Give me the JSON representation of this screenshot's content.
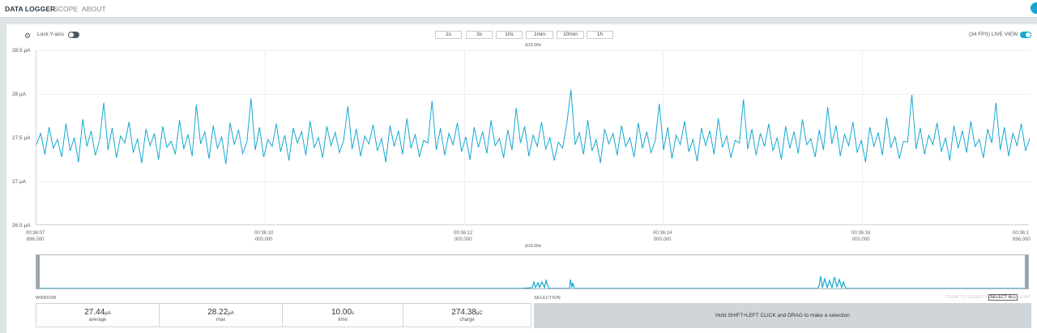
{
  "nav": {
    "items": [
      {
        "label": "DATA LOGGER",
        "active": true
      },
      {
        "label": "SCOPE",
        "active": false
      },
      {
        "label": "ABOUT",
        "active": false
      }
    ]
  },
  "toolbar": {
    "gear_icon": "gear-icon",
    "lock_label": "Lock Y-axis",
    "lock_on": false,
    "windows": [
      "1s",
      "3s",
      "10s",
      "1min",
      "10min",
      "1h"
    ],
    "fps_label": "(34 FPS) LIVE VIEW",
    "live_on": true
  },
  "chart": {
    "delta_label": "Δ10.00s",
    "y_ticks": [
      "28.5 µA",
      "28 µA",
      "27.5 µA",
      "27 µA",
      "26.5 µA"
    ],
    "x_ticks": [
      {
        "time": "00:36:07",
        "sub": "696.000"
      },
      {
        "time": "00:36:10",
        "sub": "000.000"
      },
      {
        "time": "00:36:12",
        "sub": "000.000"
      },
      {
        "time": "00:36:14",
        "sub": "000.000"
      },
      {
        "time": "00:36:16",
        "sub": "000.000"
      },
      {
        "time": "00:36:1",
        "sub": "696.000"
      }
    ],
    "line_color": "#17a8d0"
  },
  "chart_data": {
    "type": "line",
    "title": "",
    "xlabel": "",
    "ylabel": "",
    "ylim": [
      26.5,
      28.5
    ],
    "y_unit": "µA",
    "x_range_s": [
      0,
      10
    ],
    "grid": true,
    "series": [
      {
        "values": [
          27.42,
          27.55,
          27.31,
          27.62,
          27.38,
          27.48,
          27.28,
          27.66,
          27.35,
          27.5,
          27.22,
          27.71,
          27.4,
          27.58,
          27.3,
          27.47,
          27.9,
          27.36,
          27.61,
          27.27,
          27.52,
          27.44,
          27.68,
          27.33,
          27.49,
          27.21,
          27.6,
          27.41,
          27.55,
          27.25,
          27.63,
          27.39,
          27.46,
          27.31,
          27.7,
          27.37,
          27.54,
          27.29,
          27.88,
          27.43,
          27.57,
          27.26,
          27.64,
          27.38,
          27.51,
          27.2,
          27.67,
          27.42,
          27.59,
          27.32,
          27.45,
          27.95,
          27.36,
          27.62,
          27.28,
          27.48,
          27.4,
          27.66,
          27.34,
          27.53,
          27.24,
          27.61,
          27.44,
          27.57,
          27.3,
          27.69,
          27.39,
          27.5,
          27.27,
          27.63,
          27.41,
          27.56,
          27.33,
          27.47,
          27.86,
          27.37,
          27.6,
          27.29,
          27.52,
          27.43,
          27.65,
          27.35,
          27.49,
          27.22,
          27.64,
          27.4,
          27.58,
          27.31,
          27.72,
          27.38,
          27.54,
          27.28,
          27.47,
          27.44,
          27.92,
          27.36,
          27.61,
          27.3,
          27.55,
          27.42,
          27.67,
          27.34,
          27.51,
          27.25,
          27.62,
          27.39,
          27.57,
          27.32,
          27.7,
          27.41,
          27.49,
          27.27,
          27.59,
          27.36,
          27.84,
          27.44,
          27.63,
          27.29,
          27.53,
          27.4,
          27.68,
          27.37,
          27.5,
          27.24,
          27.45,
          27.38,
          27.66,
          28.05,
          27.42,
          27.56,
          27.31,
          27.7,
          27.35,
          27.48,
          27.21,
          27.6,
          27.43,
          27.55,
          27.3,
          27.64,
          27.4,
          27.5,
          27.28,
          27.67,
          27.38,
          27.57,
          27.33,
          27.46,
          27.89,
          27.36,
          27.62,
          27.26,
          27.53,
          27.42,
          27.69,
          27.34,
          27.48,
          27.23,
          27.61,
          27.41,
          27.58,
          27.31,
          27.72,
          27.39,
          27.52,
          27.27,
          27.47,
          27.44,
          27.94,
          27.37,
          27.6,
          27.3,
          27.55,
          27.4,
          27.66,
          27.35,
          27.5,
          27.25,
          27.63,
          27.38,
          27.57,
          27.32,
          27.71,
          27.42,
          27.49,
          27.28,
          27.59,
          27.36,
          27.85,
          27.43,
          27.64,
          27.29,
          27.54,
          27.41,
          27.68,
          27.33,
          27.47,
          27.22,
          27.62,
          27.4,
          27.56,
          27.3,
          27.73,
          27.39,
          27.51,
          27.26,
          27.46,
          27.45,
          27.99,
          27.37,
          27.61,
          27.31,
          27.53,
          27.42,
          27.67,
          27.34,
          27.5,
          27.24,
          27.64,
          27.38,
          27.58,
          27.33,
          27.69,
          27.4,
          27.48,
          27.27,
          27.6,
          27.44,
          27.9,
          27.36,
          27.62,
          27.29,
          27.55,
          27.41,
          27.66,
          27.35,
          27.49
        ]
      }
    ]
  },
  "minimap": {
    "delta_label": "Δ10.00s"
  },
  "window": {
    "title": "WINDOW",
    "stats": [
      {
        "value": "27.44",
        "unit": "µA",
        "label": "average"
      },
      {
        "value": "28.22",
        "unit": "µA",
        "label": "max"
      },
      {
        "value": "10.00",
        "unit": "s",
        "label": "time"
      },
      {
        "value": "274.38",
        "unit": "µC",
        "label": "charge"
      }
    ]
  },
  "selection": {
    "title": "SELECTION",
    "zoom_label": "ZOOM TO SELECTION",
    "select_all_label": "SELECT ALL",
    "clear_label": "CLEAR",
    "hint": "Hold SHIFT+LEFT CLICK and DRAG to make a selection"
  }
}
